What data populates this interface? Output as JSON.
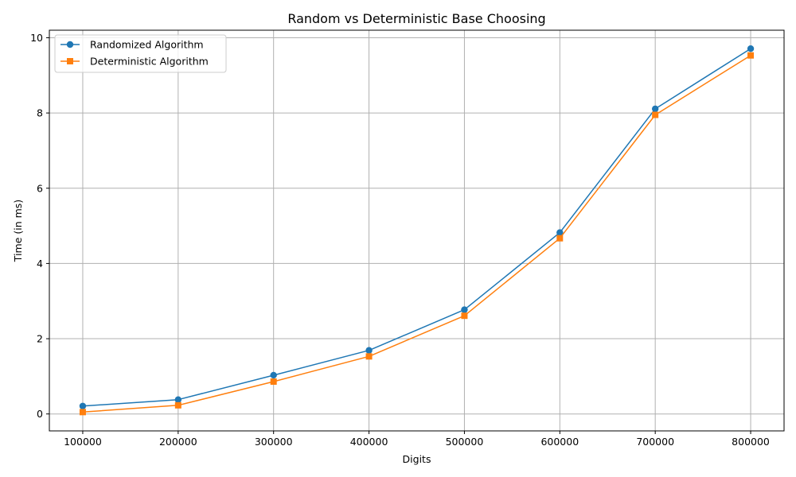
{
  "chart_data": {
    "type": "line",
    "title": "Random vs Deterministic Base Choosing",
    "xlabel": "Digits",
    "ylabel": "Time (in ms)",
    "x": [
      100000,
      200000,
      300000,
      400000,
      500000,
      600000,
      700000,
      800000
    ],
    "x_ticks": [
      "100000",
      "200000",
      "300000",
      "400000",
      "500000",
      "600000",
      "700000",
      "800000"
    ],
    "y_ticks": [
      "0",
      "2",
      "4",
      "6",
      "8",
      "10"
    ],
    "xlim": [
      65000,
      835000
    ],
    "ylim": [
      -0.45,
      10.2
    ],
    "grid": true,
    "legend_position": "top-left",
    "series": [
      {
        "name": "Randomized Algorithm",
        "color": "#1f77b4",
        "marker": "circle",
        "values": [
          0.21,
          0.38,
          1.03,
          1.69,
          2.77,
          4.82,
          8.11,
          9.71
        ]
      },
      {
        "name": "Deterministic Algorithm",
        "color": "#ff7f0e",
        "marker": "square",
        "values": [
          0.05,
          0.23,
          0.86,
          1.53,
          2.61,
          4.67,
          7.95,
          9.53
        ]
      }
    ]
  }
}
